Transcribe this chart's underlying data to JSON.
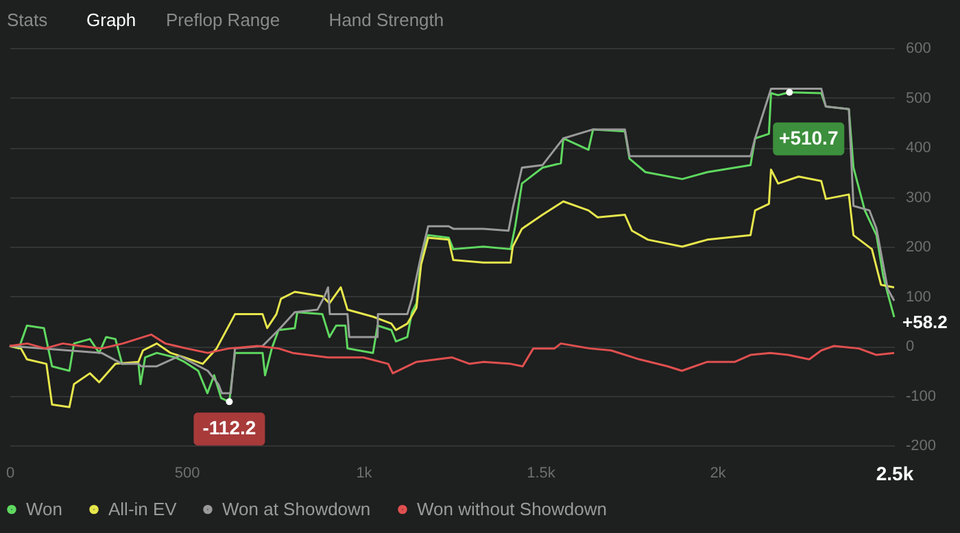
{
  "chart_data": {
    "type": "line",
    "xlim": [
      0,
      2500
    ],
    "xticks": [
      0,
      500,
      {
        "value": 1000,
        "label": "1k"
      },
      {
        "value": 1500,
        "label": "1.5k"
      },
      {
        "value": 2000,
        "label": "2k"
      },
      {
        "value": 2500,
        "label": "2.5k"
      }
    ],
    "ylim": [
      -200,
      600
    ],
    "yticks": [
      -200,
      -100,
      0,
      100,
      200,
      300,
      400,
      500,
      600
    ],
    "grid": "y",
    "legend": "bottom left",
    "marker": "none",
    "line_style": "solid",
    "series": [
      {
        "name": "Won",
        "color": "#5fd860",
        "x": [
          0,
          26,
          49,
          97,
          120,
          169,
          182,
          227,
          253,
          273,
          299,
          318,
          364,
          370,
          383,
          416,
          468,
          494,
          533,
          559,
          578,
          598,
          621,
          637,
          715,
          722,
          741,
          760,
          806,
          813,
          884,
          904,
          923,
          949,
          955,
          1027,
          1040,
          1079,
          1092,
          1124,
          1137,
          1150,
          1163,
          1183,
          1241,
          1254,
          1339,
          1416,
          1429,
          1448,
          1506,
          1558,
          1565,
          1636,
          1649,
          1739,
          1752,
          1797,
          1901,
          1972,
          2094,
          2107,
          2146,
          2152,
          2172,
          2204,
          2294,
          2307,
          2372,
          2385,
          2417,
          2450,
          2469,
          2482,
          2500
        ],
        "values": [
          0,
          -5,
          41,
          36,
          -41,
          -50,
          5,
          14,
          -14,
          18,
          14,
          -36,
          -34,
          -77,
          -23,
          -14,
          -23,
          -32,
          -50,
          -95,
          -59,
          -105,
          -112.2,
          -14,
          -14,
          -59,
          -5,
          32,
          36,
          68,
          64,
          18,
          41,
          41,
          -5,
          -14,
          41,
          32,
          9,
          18,
          68,
          86,
          177,
          223,
          218,
          195,
          200,
          195,
          241,
          327,
          359,
          368,
          418,
          395,
          436,
          432,
          377,
          350,
          336,
          350,
          364,
          418,
          427,
          509,
          505,
          510.7,
          509,
          482,
          477,
          359,
          273,
          223,
          141,
          105,
          58.2
        ]
      },
      {
        "name": "All-in EV",
        "color": "#e6e64c",
        "x": [
          0,
          32,
          49,
          104,
          120,
          169,
          182,
          227,
          253,
          299,
          364,
          377,
          416,
          455,
          494,
          546,
          585,
          637,
          715,
          728,
          754,
          767,
          806,
          884,
          904,
          936,
          955,
          1027,
          1079,
          1092,
          1124,
          1150,
          1163,
          1183,
          1241,
          1254,
          1339,
          1416,
          1422,
          1448,
          1506,
          1565,
          1636,
          1662,
          1739,
          1759,
          1804,
          1901,
          1972,
          2094,
          2107,
          2146,
          2152,
          2172,
          2230,
          2294,
          2307,
          2372,
          2385,
          2437,
          2463,
          2500
        ],
        "values": [
          0,
          -5,
          -27,
          -36,
          -118,
          -123,
          -77,
          -55,
          -73,
          -36,
          -32,
          -9,
          5,
          -14,
          -23,
          -36,
          -5,
          64,
          64,
          36,
          64,
          95,
          109,
          100,
          86,
          118,
          73,
          59,
          45,
          32,
          45,
          77,
          164,
          218,
          214,
          173,
          168,
          168,
          200,
          236,
          264,
          291,
          273,
          259,
          264,
          232,
          214,
          200,
          214,
          223,
          273,
          286,
          355,
          327,
          341,
          332,
          296,
          305,
          223,
          195,
          123,
          118
        ]
      },
      {
        "name": "Won at Showdown",
        "color": "#9a9a9a",
        "x": [
          0,
          260,
          318,
          364,
          372,
          416,
          480,
          560,
          590,
          600,
          625,
          637,
          715,
          760,
          806,
          870,
          890,
          900,
          905,
          955,
          960,
          1040,
          1041,
          1124,
          1137,
          1163,
          1183,
          1241,
          1254,
          1339,
          1410,
          1422,
          1448,
          1506,
          1565,
          1649,
          1739,
          1752,
          1800,
          2094,
          2107,
          2152,
          2294,
          2307,
          2372,
          2385,
          2430,
          2450,
          2482,
          2500
        ],
        "values": [
          0,
          -14,
          -36,
          -36,
          -41,
          -41,
          -20,
          -50,
          -77,
          -95,
          -95,
          -5,
          0,
          32,
          68,
          73,
          100,
          118,
          64,
          64,
          18,
          18,
          64,
          64,
          95,
          182,
          241,
          241,
          236,
          236,
          232,
          277,
          359,
          364,
          418,
          436,
          436,
          382,
          382,
          382,
          418,
          518,
          518,
          482,
          477,
          282,
          273,
          236,
          114,
          91
        ]
      },
      {
        "name": "Won without Showdown",
        "color": "#e0504f",
        "x": [
          0,
          50,
          100,
          150,
          200,
          260,
          320,
          400,
          440,
          500,
          560,
          620,
          700,
          760,
          800,
          900,
          1000,
          1070,
          1083,
          1150,
          1250,
          1300,
          1340,
          1416,
          1450,
          1480,
          1540,
          1558,
          1640,
          1700,
          1780,
          1860,
          1900,
          1972,
          2050,
          2094,
          2150,
          2200,
          2260,
          2294,
          2330,
          2400,
          2450,
          2500
        ],
        "values": [
          0,
          5,
          -5,
          5,
          0,
          -5,
          5,
          23,
          5,
          -5,
          -14,
          -5,
          0,
          -5,
          -14,
          -23,
          -23,
          -36,
          -55,
          -32,
          -23,
          -36,
          -32,
          -36,
          -41,
          -5,
          -5,
          5,
          -5,
          -9,
          -27,
          -41,
          -50,
          -32,
          -32,
          -18,
          -14,
          -18,
          -27,
          -9,
          0,
          -5,
          -18,
          -14
        ]
      }
    ],
    "annotations": [
      "Stats",
      "Graph",
      "Preflop Range",
      "Hand Strength",
      {
        "text": "-112.2",
        "x": 621,
        "y": -112.2
      },
      {
        "text": "+510.7",
        "x": 2204,
        "y": 510.7
      },
      {
        "text": "+58.2",
        "x": 2500,
        "y": 58.2
      }
    ]
  }
}
